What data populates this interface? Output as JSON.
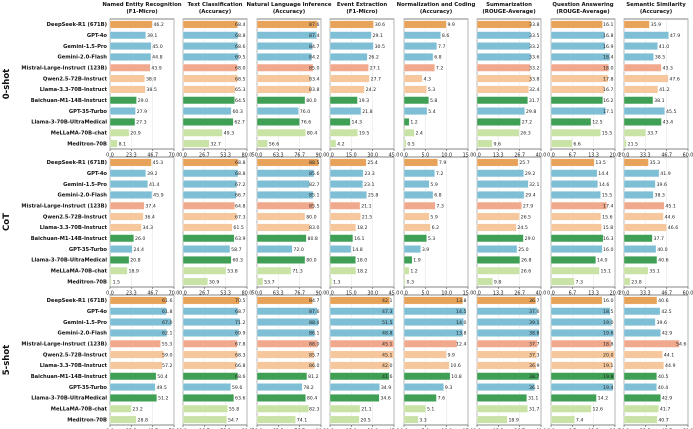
{
  "chart_data": {
    "type": "bar",
    "orientation": "horizontal",
    "grid": true,
    "colors": {
      "orange": "#e8a35a",
      "blue": "#7fbfd6",
      "salmon": "#f1a98d",
      "peach": "#f6c79c",
      "green": "#3f9f55",
      "lightgreen": "#c9e3a6"
    },
    "models": [
      "DeepSeek-R1 (671B)",
      "GPT-4o",
      "Gemini-1.5-Pro",
      "Gemini-2.0-Flash",
      "Mistral-Large-Instruct (123B)",
      "Qwen2.5-72B-Instruct",
      "Llama-3.3-70B-Instruct",
      "Baichuan-M1-14B-Instruct",
      "GPT-35-Turbo",
      "Llama-3-70B-UltraMedical",
      "MeLLaMA-70B-chat",
      "Meditron-70B"
    ],
    "model_colors": [
      "orange",
      "blue",
      "blue",
      "blue",
      "salmon",
      "peach",
      "peach",
      "green",
      "blue",
      "green",
      "lightgreen",
      "lightgreen"
    ],
    "columns": [
      {
        "title": "Named Entity Recognition",
        "subtitle": "(F1-Micro)",
        "max": 70,
        "ticks": [
          "0.0",
          "23.3",
          "46.7",
          "70.0"
        ]
      },
      {
        "title": "Text Classification",
        "subtitle": "(Accuracy)",
        "max": 80,
        "ticks": [
          "0.0",
          "26.7",
          "53.3",
          "80.0"
        ]
      },
      {
        "title": "Natural Language Inference",
        "subtitle": "(Accuracy)",
        "max": 90,
        "ticks": [
          "50.0",
          "63.3",
          "76.7",
          "90.0"
        ]
      },
      {
        "title": "Event Extraction",
        "subtitle": "(F1-Micro)",
        "max": 45,
        "ticks": [
          "0.0",
          "15.0",
          "30.0",
          "45.0"
        ]
      },
      {
        "title": "Normalization and Coding",
        "subtitle": "(Accuracy)",
        "max": 15,
        "ticks": [
          "0.0",
          "5.0",
          "10.0",
          "15.0"
        ]
      },
      {
        "title": "Summarization",
        "subtitle": "(ROUGE-Average)",
        "max": 40,
        "ticks": [
          "0.0",
          "13.3",
          "26.7",
          "40.0"
        ]
      },
      {
        "title": "Question Answering",
        "subtitle": "(ROUGE-Average)",
        "max": 20,
        "ticks": [
          "0.0",
          "6.7",
          "13.3",
          "20.0"
        ]
      },
      {
        "title": "Semantic Similarity",
        "subtitle": "(Accuracy)",
        "max": 60,
        "ticks": [
          "20.0",
          "33.3",
          "46.7",
          "60.0"
        ]
      }
    ],
    "panels": [
      {
        "label": "0-shot",
        "values": [
          [
            46.2,
            68.4,
            87.6,
            30.6,
            9.9,
            33.8,
            16.1,
            35.9
          ],
          [
            39.1,
            68.8,
            87.4,
            29.1,
            8.6,
            33.5,
            16.8,
            47.9
          ],
          [
            45.0,
            68.6,
            84.7,
            30.5,
            7.7,
            33.2,
            16.9,
            41.0
          ],
          [
            44.8,
            69.5,
            84.2,
            26.2,
            6.8,
            33.6,
            18.4,
            38.5
          ],
          [
            43.9,
            68.0,
            85.0,
            27.1,
            7.2,
            33.2,
            18.0,
            43.3
          ],
          [
            38.0,
            68.5,
            83.4,
            27.7,
            4.3,
            33.8,
            17.8,
            47.6
          ],
          [
            38.5,
            65.3,
            83.8,
            24.2,
            5.3,
            32.4,
            16.7,
            41.2
          ],
          [
            29.0,
            64.5,
            80.0,
            19.3,
            5.8,
            31.7,
            16.2,
            38.1
          ],
          [
            27.9,
            60.3,
            76.0,
            21.8,
            5.4,
            29.8,
            17.1,
            45.5
          ],
          [
            27.3,
            62.7,
            76.6,
            14.3,
            1.2,
            27.2,
            12.5,
            43.4
          ],
          [
            20.9,
            49.3,
            80.4,
            19.5,
            2.4,
            26.3,
            15.5,
            33.7
          ],
          [
            8.1,
            32.7,
            56.6,
            4.2,
            0.5,
            9.6,
            6.6,
            21.5
          ]
        ]
      },
      {
        "label": "CoT",
        "values": [
          [
            45.3,
            68.8,
            88.5,
            25.4,
            7.9,
            25.7,
            13.5,
            35.3
          ],
          [
            39.2,
            68.8,
            85.6,
            23.3,
            7.2,
            29.2,
            14.4,
            41.9
          ],
          [
            41.4,
            67.2,
            82.7,
            23.1,
            5.9,
            32.1,
            14.6,
            39.6
          ],
          [
            45.9,
            66.7,
            85.1,
            25.8,
            6.8,
            29.4,
            15.5,
            38.3
          ],
          [
            37.4,
            64.8,
            85.5,
            21.1,
            7.3,
            27.9,
            17.4,
            45.1
          ],
          [
            36.4,
            67.3,
            80.0,
            21.5,
            5.9,
            26.5,
            15.6,
            44.6
          ],
          [
            34.3,
            61.5,
            83.0,
            18.2,
            6.2,
            24.5,
            15.8,
            46.6
          ],
          [
            26.0,
            63.9,
            80.8,
            16.1,
            5.3,
            29.0,
            16.3,
            37.7
          ],
          [
            24.4,
            58.7,
            72.0,
            14.8,
            3.9,
            25.0,
            16.0,
            40.0
          ],
          [
            20.8,
            60.3,
            80.0,
            18.0,
            1.9,
            26.8,
            14.0,
            40.6
          ],
          [
            18.9,
            53.8,
            71.3,
            18.2,
            1.2,
            26.6,
            15.1,
            35.1
          ],
          [
            1.5,
            30.9,
            53.7,
            1.3,
            0.3,
            9.8,
            7.3,
            23.8
          ]
        ]
      },
      {
        "label": "5-shot",
        "values": [
          [
            61.6,
            70.5,
            84.7,
            42.1,
            13.8,
            36.7,
            16.0,
            40.6
          ],
          [
            61.8,
            68.7,
            87.6,
            47.3,
            14.5,
            37.6,
            18.5,
            42.5
          ],
          [
            67.0,
            71.2,
            88.4,
            51.5,
            14.0,
            39.1,
            19.0,
            39.6
          ],
          [
            62.1,
            69.9,
            86.1,
            48.8,
            13.8,
            38.8,
            19.6,
            42.9
          ],
          [
            55.3,
            67.8,
            88.0,
            45.1,
            12.4,
            37.7,
            18.8,
            54.6
          ],
          [
            59.0,
            68.3,
            85.7,
            45.1,
            9.9,
            37.3,
            20.0,
            44.1
          ],
          [
            57.2,
            66.8,
            86.0,
            42.0,
            10.6,
            36.9,
            19.1,
            44.9
          ],
          [
            50.4,
            68.6,
            81.2,
            41.6,
            10.8,
            38.7,
            19.8,
            40.5
          ],
          [
            49.5,
            59.6,
            78.2,
            34.9,
            9.3,
            36.1,
            19.4,
            40.4
          ],
          [
            51.2,
            63.6,
            80.4,
            34.6,
            7.6,
            31.1,
            14.2,
            42.9
          ],
          [
            23.2,
            55.8,
            82.3,
            21.1,
            5.1,
            31.7,
            12.6,
            41.7
          ],
          [
            28.8,
            54.7,
            74.1,
            20.5,
            3.3,
            18.9,
            7.4,
            40.7
          ]
        ]
      }
    ]
  }
}
